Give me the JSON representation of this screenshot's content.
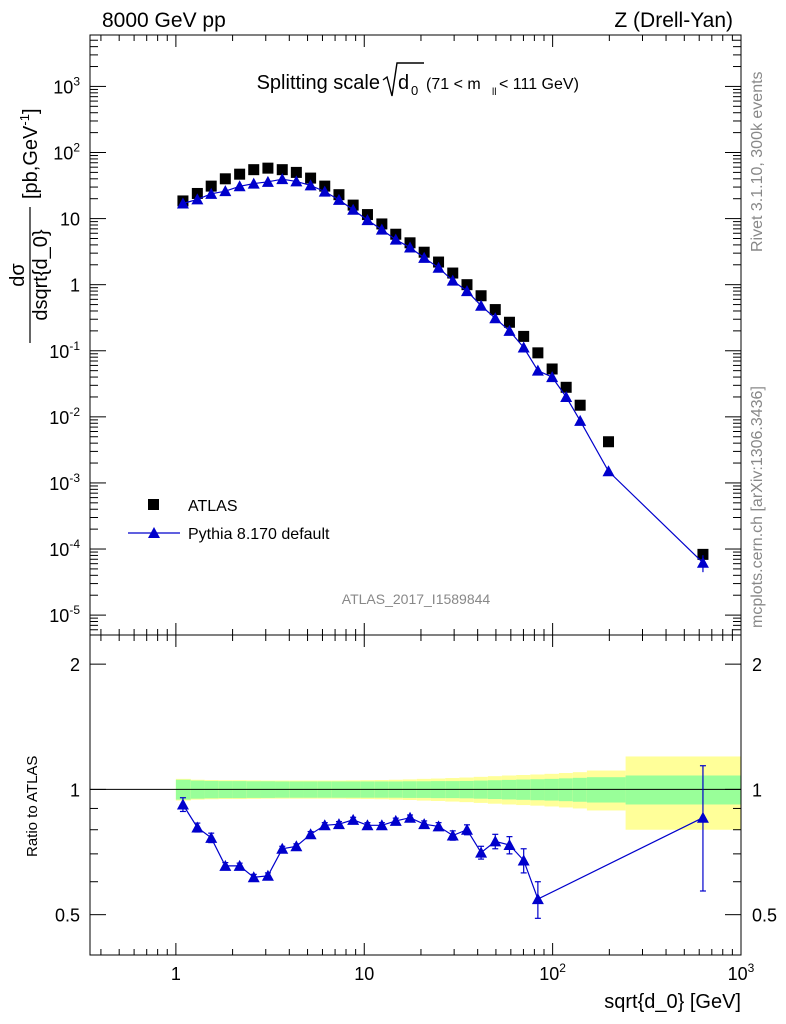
{
  "header": {
    "left": "8000 GeV pp",
    "right": "Z (Drell-Yan)"
  },
  "side_labels": {
    "rivet": "Rivet 3.1.10,  300k events",
    "mcplots": "mcplots.cern.ch [arXiv:1306.3436]"
  },
  "chart_data": [
    {
      "type": "scatter",
      "panel": "main",
      "title": "Splitting scale",
      "title_sqrt": "d",
      "title_sub": "0",
      "title_cut": "(71 < m",
      "title_cut_sub": "ll",
      "title_cut_end": " < 111 GeV)",
      "ylabel_num": "dσ",
      "ylabel_den": "dsqrt{d_0}",
      "ylabel_unit": "[pb,GeV",
      "ylabel_unit_sup": "-1",
      "ylabel_unit_end": "]",
      "watermark": "ATLAS_2017_I1589844",
      "x_scale": "log",
      "y_scale": "log",
      "xlim": [
        0.35,
        1000
      ],
      "ylim": [
        5e-06,
        6000
      ],
      "y_ticks": [
        {
          "v": 1e-05,
          "label": "10",
          "sup": "-5"
        },
        {
          "v": 0.0001,
          "label": "10",
          "sup": "-4"
        },
        {
          "v": 0.001,
          "label": "10",
          "sup": "-3"
        },
        {
          "v": 0.01,
          "label": "10",
          "sup": "-2"
        },
        {
          "v": 0.1,
          "label": "10",
          "sup": "-1"
        },
        {
          "v": 1,
          "label": "1",
          "sup": ""
        },
        {
          "v": 10,
          "label": "10",
          "sup": ""
        },
        {
          "v": 100,
          "label": "10",
          "sup": "2"
        },
        {
          "v": 1000,
          "label": "10",
          "sup": "3"
        }
      ],
      "legend_position": "bottom-left",
      "series": [
        {
          "name": "ATLAS",
          "marker": "square",
          "color": "#000000",
          "points": [
            {
              "x": 1.09,
              "y": 18.5
            },
            {
              "x": 1.3,
              "y": 24
            },
            {
              "x": 1.54,
              "y": 31
            },
            {
              "x": 1.83,
              "y": 40
            },
            {
              "x": 2.18,
              "y": 47
            },
            {
              "x": 2.59,
              "y": 55
            },
            {
              "x": 3.08,
              "y": 58
            },
            {
              "x": 3.67,
              "y": 55
            },
            {
              "x": 4.36,
              "y": 50
            },
            {
              "x": 5.19,
              "y": 41
            },
            {
              "x": 6.17,
              "y": 31
            },
            {
              "x": 7.34,
              "y": 23
            },
            {
              "x": 8.73,
              "y": 16
            },
            {
              "x": 10.4,
              "y": 11.5
            },
            {
              "x": 12.4,
              "y": 8.3
            },
            {
              "x": 14.7,
              "y": 5.8
            },
            {
              "x": 17.5,
              "y": 4.3
            },
            {
              "x": 20.8,
              "y": 3.1
            },
            {
              "x": 24.8,
              "y": 2.2
            },
            {
              "x": 29.5,
              "y": 1.5
            },
            {
              "x": 35.1,
              "y": 1.0
            },
            {
              "x": 41.7,
              "y": 0.68
            },
            {
              "x": 49.6,
              "y": 0.42
            },
            {
              "x": 59.0,
              "y": 0.27
            },
            {
              "x": 70.2,
              "y": 0.165
            },
            {
              "x": 83.5,
              "y": 0.093
            },
            {
              "x": 99.4,
              "y": 0.053
            },
            {
              "x": 118,
              "y": 0.028
            },
            {
              "x": 140,
              "y": 0.015
            },
            {
              "x": 198,
              "y": 0.0042
            },
            {
              "x": 628,
              "y": 8.3e-05
            }
          ]
        },
        {
          "name": "Pythia 8.170 default",
          "marker": "triangle",
          "color": "#0000cc",
          "points": [
            {
              "x": 1.09,
              "y": 16.9
            },
            {
              "x": 1.3,
              "y": 19.5
            },
            {
              "x": 1.54,
              "y": 23.7
            },
            {
              "x": 1.83,
              "y": 26
            },
            {
              "x": 2.18,
              "y": 30.8
            },
            {
              "x": 2.59,
              "y": 33.8
            },
            {
              "x": 3.08,
              "y": 36
            },
            {
              "x": 3.67,
              "y": 39.5
            },
            {
              "x": 4.36,
              "y": 36.5
            },
            {
              "x": 5.19,
              "y": 31.8
            },
            {
              "x": 6.17,
              "y": 25.6
            },
            {
              "x": 7.34,
              "y": 19.2
            },
            {
              "x": 8.73,
              "y": 13.6
            },
            {
              "x": 10.4,
              "y": 9.5
            },
            {
              "x": 12.4,
              "y": 6.8
            },
            {
              "x": 14.7,
              "y": 4.8
            },
            {
              "x": 17.5,
              "y": 3.65
            },
            {
              "x": 20.8,
              "y": 2.55
            },
            {
              "x": 24.8,
              "y": 1.8
            },
            {
              "x": 29.5,
              "y": 1.15
            },
            {
              "x": 35.1,
              "y": 0.8
            },
            {
              "x": 41.7,
              "y": 0.48
            },
            {
              "x": 49.6,
              "y": 0.31
            },
            {
              "x": 59.0,
              "y": 0.2
            },
            {
              "x": 70.2,
              "y": 0.112
            },
            {
              "x": 83.5,
              "y": 0.05
            },
            {
              "x": 99.4,
              "y": 0.04
            },
            {
              "x": 118,
              "y": 0.02
            },
            {
              "x": 140,
              "y": 0.0087
            },
            {
              "x": 198,
              "y": 0.0015
            },
            {
              "x": 628,
              "y": 6.2e-05
            }
          ]
        }
      ]
    },
    {
      "type": "scatter",
      "panel": "ratio",
      "ylabel": "Ratio to ATLAS",
      "xlabel": "sqrt{d_0} [GeV]",
      "x_scale": "log",
      "xlim": [
        0.35,
        1000
      ],
      "ylim": [
        0.4,
        2.35
      ],
      "x_ticks": [
        {
          "v": 1,
          "label": "1",
          "sup": ""
        },
        {
          "v": 10,
          "label": "10",
          "sup": ""
        },
        {
          "v": 100,
          "label": "10",
          "sup": "2"
        },
        {
          "v": 1000,
          "label": "10",
          "sup": "3"
        }
      ],
      "y_ticks": [
        {
          "v": 0.5,
          "label": "0.5"
        },
        {
          "v": 1,
          "label": "1"
        },
        {
          "v": 2,
          "label": "2"
        }
      ],
      "reference_line": 1,
      "bands": {
        "bins": [
          1.0,
          1.2,
          1.42,
          1.69,
          2.0,
          2.38,
          2.83,
          3.36,
          4.0,
          4.76,
          5.66,
          6.73,
          8.0,
          9.51,
          11.3,
          13.5,
          16.0,
          19.0,
          22.6,
          26.9,
          32.0,
          38.1,
          45.3,
          53.8,
          64.0,
          76.1,
          90.5,
          108,
          128,
          152,
          244,
          1000
        ],
        "green_color": "#99ff99",
        "yellow_color": "#ffff99",
        "green_half_width": [
          0.055,
          0.05,
          0.048,
          0.047,
          0.047,
          0.046,
          0.046,
          0.045,
          0.045,
          0.045,
          0.045,
          0.045,
          0.045,
          0.045,
          0.045,
          0.045,
          0.046,
          0.046,
          0.047,
          0.047,
          0.048,
          0.05,
          0.052,
          0.054,
          0.056,
          0.058,
          0.06,
          0.063,
          0.066,
          0.07,
          0.08
        ],
        "yellow_half_width": [
          0.06,
          0.055,
          0.053,
          0.052,
          0.052,
          0.051,
          0.05,
          0.05,
          0.05,
          0.05,
          0.05,
          0.05,
          0.051,
          0.052,
          0.053,
          0.055,
          0.057,
          0.06,
          0.062,
          0.065,
          0.068,
          0.072,
          0.076,
          0.08,
          0.083,
          0.086,
          0.09,
          0.095,
          0.1,
          0.11,
          0.2
        ]
      },
      "series": [
        {
          "name": "Pythia 8.170 default",
          "marker": "triangle",
          "color": "#0000cc",
          "points": [
            {
              "x": 1.09,
              "y": 0.92,
              "err": 0.035
            },
            {
              "x": 1.3,
              "y": 0.81,
              "err": 0.02
            },
            {
              "x": 1.54,
              "y": 0.765,
              "err": 0.02
            },
            {
              "x": 1.83,
              "y": 0.655,
              "err": 0.012
            },
            {
              "x": 2.18,
              "y": 0.655,
              "err": 0.01
            },
            {
              "x": 2.59,
              "y": 0.615,
              "err": 0.01
            },
            {
              "x": 3.08,
              "y": 0.62,
              "err": 0.01
            },
            {
              "x": 3.67,
              "y": 0.72,
              "err": 0.01
            },
            {
              "x": 4.36,
              "y": 0.73,
              "err": 0.01
            },
            {
              "x": 5.19,
              "y": 0.78,
              "err": 0.012
            },
            {
              "x": 6.17,
              "y": 0.82,
              "err": 0.012
            },
            {
              "x": 7.34,
              "y": 0.825,
              "err": 0.012
            },
            {
              "x": 8.73,
              "y": 0.845,
              "err": 0.012
            },
            {
              "x": 10.4,
              "y": 0.82,
              "err": 0.012
            },
            {
              "x": 12.4,
              "y": 0.82,
              "err": 0.012
            },
            {
              "x": 14.7,
              "y": 0.84,
              "err": 0.013
            },
            {
              "x": 17.5,
              "y": 0.855,
              "err": 0.013
            },
            {
              "x": 20.8,
              "y": 0.825,
              "err": 0.015
            },
            {
              "x": 24.8,
              "y": 0.815,
              "err": 0.017
            },
            {
              "x": 29.5,
              "y": 0.775,
              "err": 0.02
            },
            {
              "x": 35.1,
              "y": 0.8,
              "err": 0.022
            },
            {
              "x": 41.7,
              "y": 0.705,
              "err": 0.025
            },
            {
              "x": 49.6,
              "y": 0.75,
              "err": 0.03
            },
            {
              "x": 59.0,
              "y": 0.735,
              "err": 0.035
            },
            {
              "x": 70.2,
              "y": 0.675,
              "err": 0.045
            },
            {
              "x": 83.5,
              "y": 0.545,
              "err": 0.055
            },
            {
              "x": 628,
              "y": 0.855,
              "err": 0.285
            }
          ]
        }
      ]
    }
  ]
}
